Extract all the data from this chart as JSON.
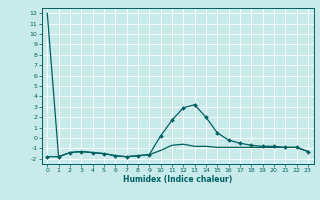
{
  "title": "",
  "xlabel": "Humidex (Indice chaleur)",
  "ylabel": "",
  "bg_color": "#c8eaea",
  "grid_color": "#ffffff",
  "line_color": "#006060",
  "xlim": [
    -0.5,
    23.5
  ],
  "ylim": [
    -2.5,
    12.5
  ],
  "xticks": [
    0,
    1,
    2,
    3,
    4,
    5,
    6,
    7,
    8,
    9,
    10,
    11,
    12,
    13,
    14,
    15,
    16,
    17,
    18,
    19,
    20,
    21,
    22,
    23
  ],
  "yticks": [
    -2,
    -1,
    0,
    1,
    2,
    3,
    4,
    5,
    6,
    7,
    8,
    9,
    10,
    11,
    12
  ],
  "curve1_x": [
    0,
    1,
    2,
    3,
    4,
    5,
    6,
    7,
    8,
    9,
    10,
    11,
    12,
    13,
    14,
    15,
    16,
    17,
    18,
    19,
    20,
    21,
    22,
    23
  ],
  "curve1_y": [
    12.0,
    -1.8,
    -1.4,
    -1.3,
    -1.4,
    -1.5,
    -1.7,
    -1.8,
    -1.7,
    -1.6,
    -1.2,
    -0.7,
    -0.6,
    -0.8,
    -0.8,
    -0.9,
    -0.9,
    -0.9,
    -0.9,
    -0.9,
    -0.9,
    -0.9,
    -0.9,
    -1.3
  ],
  "curve2_x": [
    0,
    1,
    2,
    3,
    4,
    5,
    6,
    7,
    8,
    9,
    10,
    11,
    12,
    13,
    14,
    15,
    16,
    17,
    18,
    19,
    20,
    21,
    22,
    23
  ],
  "curve2_y": [
    -1.8,
    -1.8,
    -1.4,
    -1.3,
    -1.4,
    -1.5,
    -1.7,
    -1.8,
    -1.7,
    -1.6,
    0.2,
    1.7,
    2.9,
    3.2,
    2.0,
    0.5,
    -0.2,
    -0.5,
    -0.7,
    -0.8,
    -0.8,
    -0.9,
    -0.9,
    -1.3
  ],
  "xlabel_fontsize": 5.5,
  "tick_fontsize": 4.5
}
